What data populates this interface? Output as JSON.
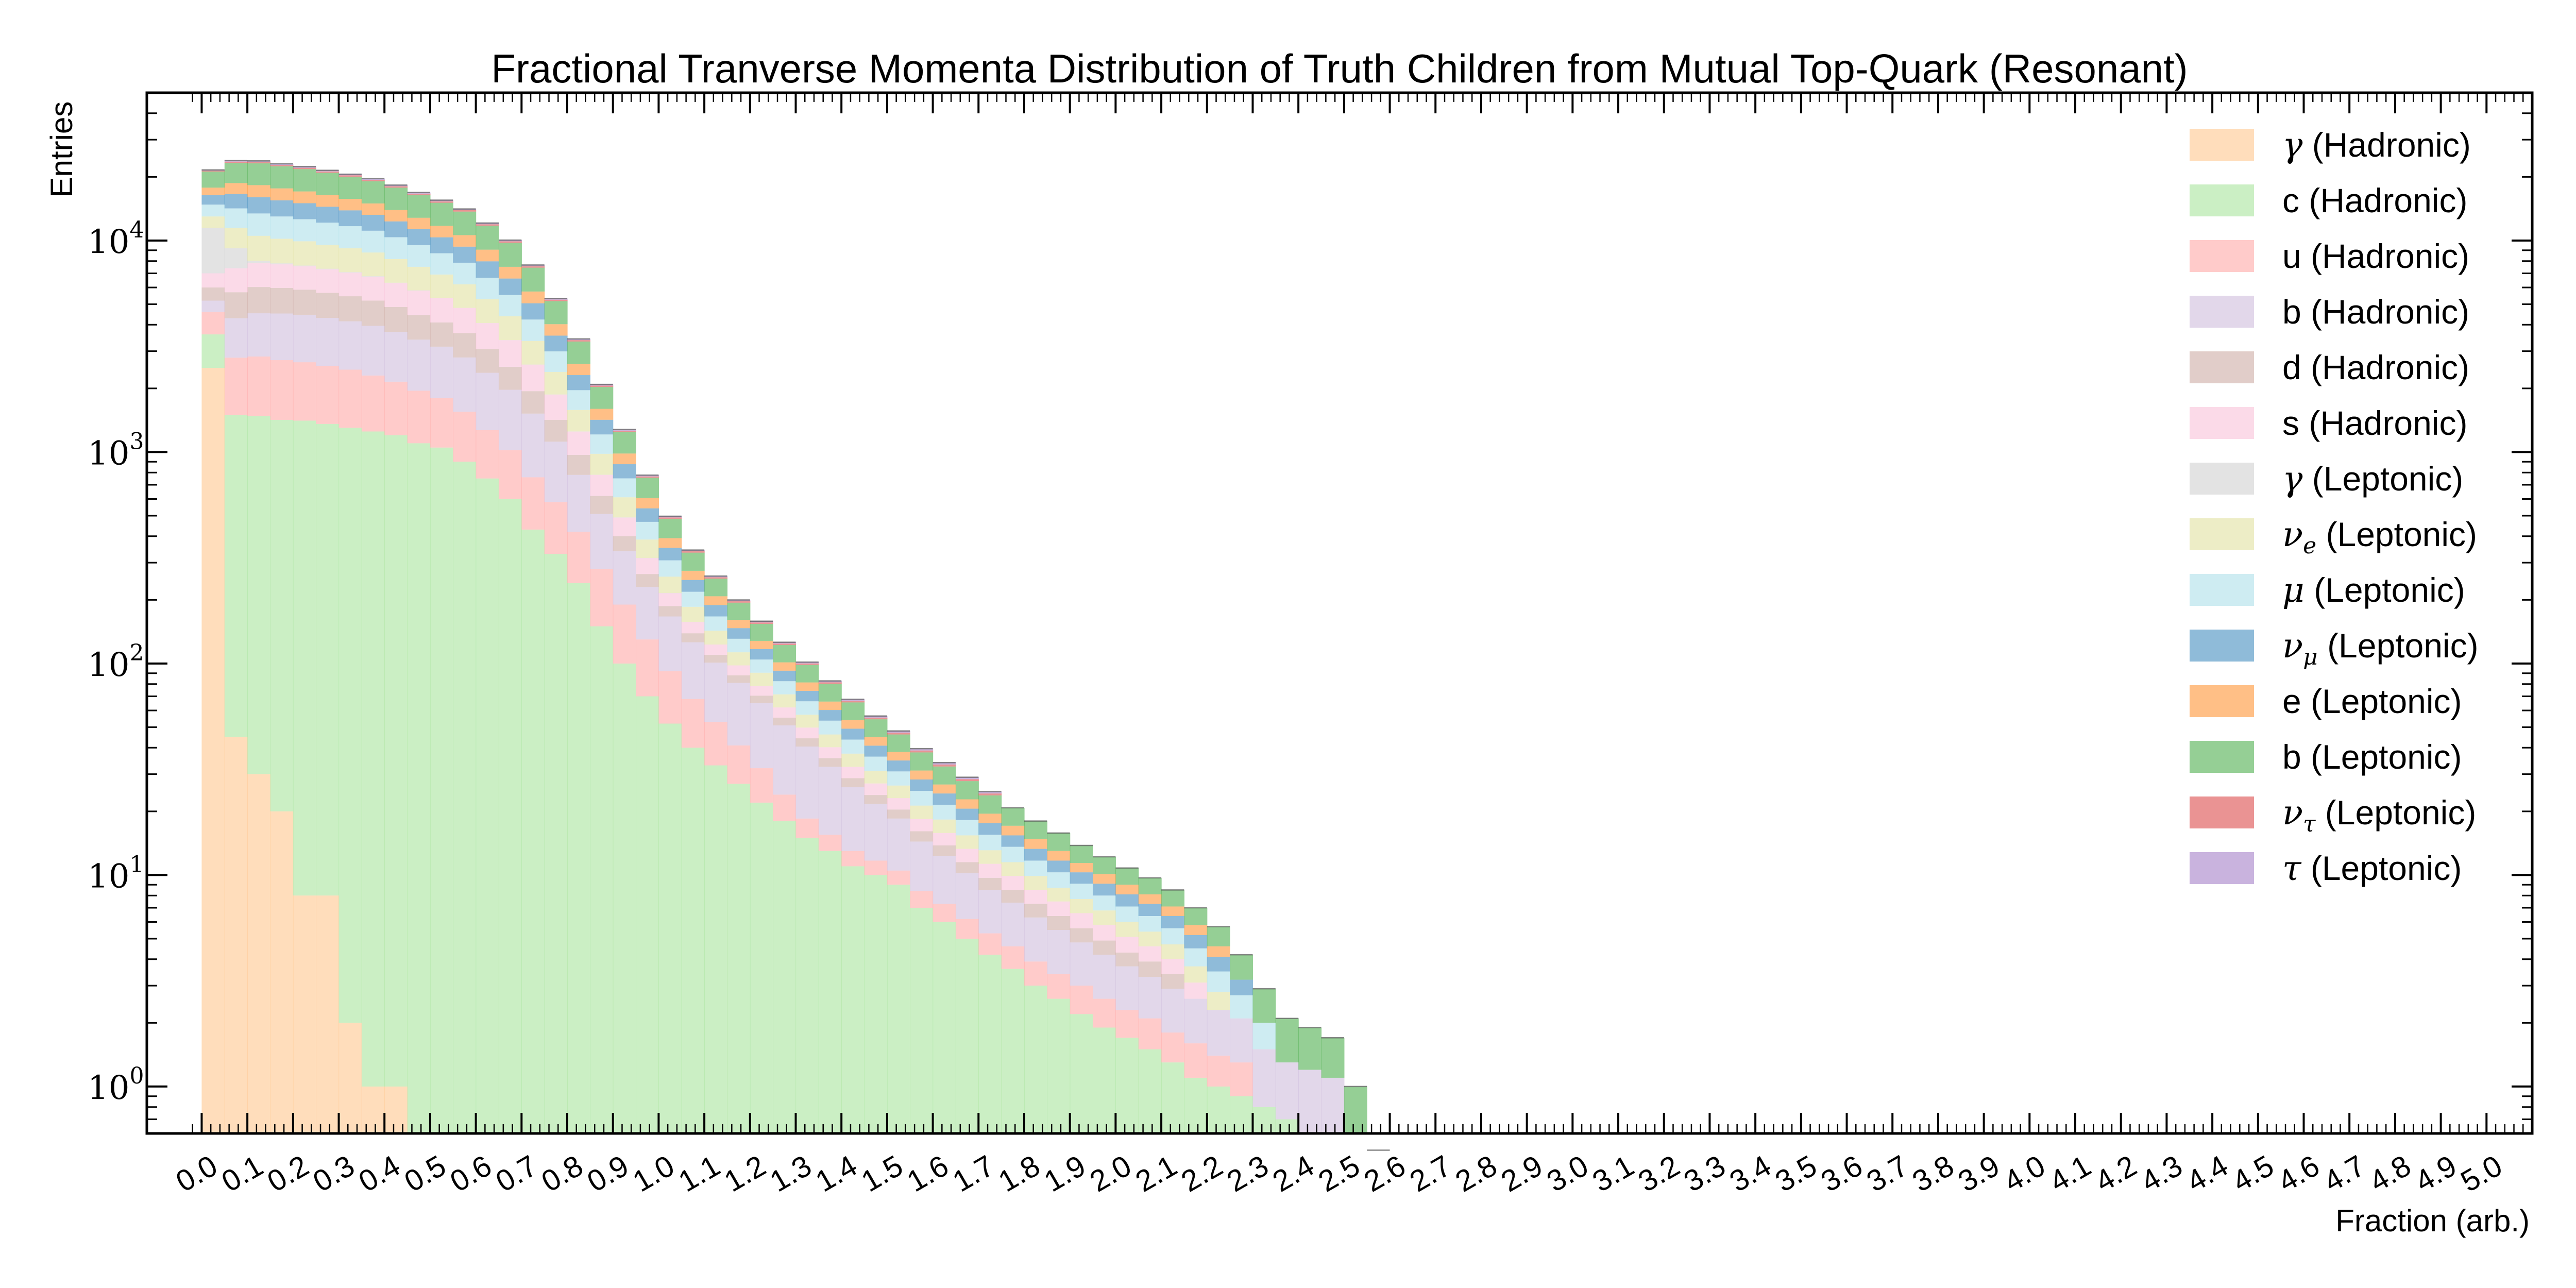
{
  "chart_data": {
    "type": "bar",
    "stacked": true,
    "title": "Fractional Tranverse Momenta Distribution of Truth Children from Mutual Top-Quark (Resonant)",
    "xlabel": "Fraction (arb.)",
    "ylabel": "Entries",
    "yscale": "log",
    "xlim": [
      -0.12,
      5.1
    ],
    "ylim": [
      0.6,
      50000
    ],
    "bins": {
      "start": 0.0,
      "width": 0.05,
      "count": 100
    },
    "legend": {
      "position": "top-right"
    },
    "xtick_labels": [
      "0.0",
      "0.1",
      "0.2",
      "0.3",
      "0.4",
      "0.5",
      "0.6",
      "0.7",
      "0.8",
      "0.9",
      "1.0",
      "1.1",
      "1.2",
      "1.3",
      "1.4",
      "1.5",
      "1.6",
      "1.7",
      "1.8",
      "1.9",
      "2.0",
      "2.1",
      "2.2",
      "2.3",
      "2.4",
      "2.5",
      "2.6",
      "2.7",
      "2.8",
      "2.9",
      "3.0",
      "3.1",
      "3.2",
      "3.3",
      "3.4",
      "3.5",
      "3.6",
      "3.7",
      "3.8",
      "3.9",
      "4.0",
      "4.1",
      "4.2",
      "4.3",
      "4.4",
      "4.5",
      "4.6",
      "4.7",
      "4.8",
      "4.9",
      "5.0"
    ],
    "ytick_labels": [
      {
        "value": 1,
        "base": "10",
        "exp": "0"
      },
      {
        "value": 10,
        "base": "10",
        "exp": "1"
      },
      {
        "value": 100,
        "base": "10",
        "exp": "2"
      },
      {
        "value": 1000,
        "base": "10",
        "exp": "3"
      },
      {
        "value": 10000,
        "base": "10",
        "exp": "4"
      }
    ],
    "series": [
      {
        "name": "γ (Hadronic)",
        "color": "#ffbb78",
        "values": [
          2500,
          45,
          30,
          20,
          8,
          8,
          2,
          1,
          1,
          0.5,
          0,
          0.5,
          0,
          0
        ]
      },
      {
        "name": "c (Hadronic)",
        "color": "#98df8a",
        "values": [
          1100,
          1450,
          1450,
          1400,
          1400,
          1350,
          1300,
          1250,
          1200,
          1100,
          1050,
          900,
          750,
          600,
          430,
          330,
          240,
          150,
          100,
          70,
          52,
          40,
          33,
          27,
          22,
          18,
          15,
          13,
          11,
          10,
          9,
          7,
          6,
          5,
          4.2,
          3.6,
          3,
          2.6,
          2.2,
          1.9,
          1.7,
          1.5,
          1.3,
          1.1,
          1,
          0.9,
          0.8,
          0.7,
          0.6,
          0.6,
          0.5,
          0.5
        ]
      },
      {
        "name": "u (Hadronic)",
        "color": "#ff9896",
        "values": [
          1000,
          1300,
          1350,
          1300,
          1250,
          1200,
          1150,
          1050,
          950,
          850,
          750,
          650,
          520,
          420,
          330,
          250,
          180,
          130,
          90,
          60,
          40,
          28,
          20,
          14,
          10,
          6,
          3.5,
          2.5,
          2,
          1.7,
          1.5,
          1.4,
          1.3,
          1.2,
          1.1,
          1,
          0.9,
          0.8,
          0.8,
          0.7,
          0.6,
          0.6,
          0.5,
          0.5,
          0.4,
          0.4
        ]
      },
      {
        "name": "b (Hadronic)",
        "color": "#c5b0d5",
        "values": [
          600,
          1500,
          1700,
          1800,
          1800,
          1750,
          1700,
          1650,
          1550,
          1450,
          1350,
          1250,
          1100,
          950,
          760,
          540,
          360,
          230,
          150,
          100,
          75,
          58,
          48,
          40,
          33,
          27,
          22,
          17,
          13,
          10,
          8,
          6,
          5,
          4,
          3.2,
          2.8,
          2.4,
          2.1,
          1.8,
          1.6,
          1.4,
          1.2,
          1.1,
          1,
          0.9,
          0.8,
          0.7,
          0.6,
          0.6,
          0.5
        ]
      },
      {
        "name": "d (Hadronic)",
        "color": "#c49c94",
        "values": [
          800,
          1400,
          1500,
          1450,
          1400,
          1350,
          1300,
          1250,
          1150,
          1050,
          950,
          850,
          700,
          560,
          420,
          300,
          190,
          110,
          60,
          35,
          20,
          13,
          9,
          7,
          5.5,
          4.5,
          3.8,
          3.2,
          2.7,
          2.2,
          1.9,
          1.7,
          1.5,
          1.3,
          1.2,
          1.1,
          1,
          0.9,
          0.8,
          0.7,
          0.6,
          0.6,
          0.5
        ]
      },
      {
        "name": "s (Hadronic)",
        "color": "#f7b6d2",
        "values": [
          1000,
          1700,
          1800,
          1750,
          1700,
          1650,
          1600,
          1550,
          1450,
          1350,
          1250,
          1150,
          1000,
          850,
          650,
          450,
          280,
          160,
          90,
          50,
          28,
          18,
          13,
          10,
          8,
          6.5,
          5.5,
          4.5,
          3.8,
          3.2,
          2.7,
          2.3,
          2,
          1.8,
          1.6,
          1.4,
          1.2,
          1.1,
          1,
          0.9,
          0.8,
          0.7,
          0.6,
          0.5
        ]
      },
      {
        "name": "γ (Leptonic)",
        "color": "#c7c7c7",
        "values": [
          4500,
          1800,
          200,
          80,
          60,
          50,
          40,
          30,
          20,
          15,
          10,
          7,
          5,
          4,
          3,
          2,
          1.5,
          1.2,
          1,
          0.8,
          0.6,
          0.5
        ]
      },
      {
        "name": "ν_e (Leptonic)",
        "color": "#dbdb8d",
        "values": [
          1500,
          2300,
          2500,
          2400,
          2300,
          2200,
          2100,
          2000,
          1850,
          1700,
          1550,
          1400,
          1200,
          1000,
          760,
          520,
          330,
          200,
          120,
          70,
          42,
          28,
          20,
          15,
          12,
          9.5,
          7.5,
          6,
          5,
          4,
          3.4,
          2.9,
          2.5,
          2.1,
          1.8,
          1.6,
          1.4,
          1.2,
          1.1,
          1,
          0.9,
          0.8,
          0.7,
          0.6,
          0.5
        ]
      },
      {
        "name": "μ (Leptonic)",
        "color": "#9edae5",
        "values": [
          1800,
          2700,
          2900,
          2800,
          2700,
          2600,
          2500,
          2350,
          2200,
          2000,
          1800,
          1650,
          1400,
          1150,
          880,
          600,
          380,
          230,
          140,
          82,
          50,
          33,
          24,
          18,
          14,
          11,
          9,
          7.5,
          6.2,
          5.2,
          4.4,
          3.7,
          3.2,
          2.8,
          2.4,
          2.1,
          1.8,
          1.6,
          1.4,
          1.2,
          1.1,
          1,
          0.9,
          0.8,
          0.7,
          0.6,
          0.5
        ]
      },
      {
        "name": "ν_μ (Leptonic)",
        "color": "#1f77b4",
        "values": [
          1600,
          2400,
          2600,
          2500,
          2400,
          2300,
          2200,
          2100,
          1950,
          1800,
          1650,
          1500,
          1300,
          1080,
          820,
          560,
          350,
          210,
          125,
          74,
          45,
          30,
          22,
          16,
          12.5,
          10,
          8,
          6.6,
          5.5,
          4.6,
          3.9,
          3.3,
          2.8,
          2.4,
          2.1,
          1.8,
          1.6,
          1.4,
          1.2,
          1.1,
          1,
          0.9,
          0.8,
          0.7,
          0.6,
          0.5
        ]
      },
      {
        "name": "e (Leptonic)",
        "color": "#ff7f0e",
        "values": [
          1400,
          2100,
          2250,
          2150,
          2050,
          1950,
          1850,
          1750,
          1620,
          1500,
          1380,
          1250,
          1080,
          900,
          690,
          470,
          300,
          180,
          108,
          64,
          39,
          26,
          19,
          14,
          11,
          8.8,
          7.1,
          5.8,
          4.8,
          4,
          3.4,
          2.9,
          2.5,
          2.2,
          1.9,
          1.7,
          1.5,
          1.3,
          1.1,
          1,
          0.9,
          0.8,
          0.7,
          0.6,
          0.5
        ]
      },
      {
        "name": "b (Leptonic)",
        "color": "#2ca02c",
        "values": [
          3400,
          4600,
          4900,
          4800,
          4700,
          4500,
          4300,
          4100,
          3850,
          3600,
          3350,
          3100,
          2700,
          2250,
          1700,
          1150,
          720,
          430,
          260,
          150,
          92,
          60,
          44,
          33,
          26,
          21,
          17,
          14,
          11.5,
          9.6,
          8,
          6.8,
          5.8,
          5,
          4.3,
          3.7,
          3.2,
          2.8,
          2.4,
          2.1,
          1.8,
          1.6,
          1.4,
          1.2,
          1.1,
          1,
          0.9,
          0.8,
          0.7,
          0.6,
          0.5
        ]
      },
      {
        "name": "ν_τ (Leptonic)",
        "color": "#d62728",
        "values": [
          200,
          320,
          340,
          330,
          320,
          310,
          300,
          290,
          270,
          250,
          230,
          210,
          180,
          150,
          115,
          80,
          50,
          30,
          18,
          11,
          7,
          5,
          3.8,
          3,
          2.4,
          2,
          1.7,
          1.4,
          1.2,
          1,
          0.9,
          0.8,
          0.7,
          0.6,
          0.5
        ]
      },
      {
        "name": "τ (Leptonic)",
        "color": "#9467bd",
        "values": [
          180,
          290,
          300,
          290,
          280,
          270,
          260,
          250,
          235,
          220,
          205,
          190,
          165,
          140,
          105,
          72,
          46,
          28,
          17,
          10.5,
          6.6,
          4.6,
          3.5,
          2.8,
          2.2,
          1.8,
          1.5,
          1.3,
          1.1,
          1,
          0.9,
          0.8,
          0.7,
          0.6,
          0.5
        ]
      }
    ]
  },
  "legend_labels": [
    {
      "sym": "γ",
      "sub": "",
      "suffix": " (Hadronic)"
    },
    {
      "sym": "",
      "sub": "",
      "suffix": "c (Hadronic)"
    },
    {
      "sym": "",
      "sub": "",
      "suffix": "u (Hadronic)"
    },
    {
      "sym": "",
      "sub": "",
      "suffix": "b (Hadronic)"
    },
    {
      "sym": "",
      "sub": "",
      "suffix": "d (Hadronic)"
    },
    {
      "sym": "",
      "sub": "",
      "suffix": "s (Hadronic)"
    },
    {
      "sym": "γ",
      "sub": "",
      "suffix": " (Leptonic)"
    },
    {
      "sym": "ν",
      "sub": "e",
      "suffix": " (Leptonic)"
    },
    {
      "sym": "μ",
      "sub": "",
      "suffix": " (Leptonic)"
    },
    {
      "sym": "ν",
      "sub": "μ",
      "suffix": " (Leptonic)"
    },
    {
      "sym": "",
      "sub": "",
      "suffix": "e (Leptonic)"
    },
    {
      "sym": "",
      "sub": "",
      "suffix": "b (Leptonic)"
    },
    {
      "sym": "ν",
      "sub": "τ",
      "suffix": " (Leptonic)"
    },
    {
      "sym": "τ",
      "sub": "",
      "suffix": " (Leptonic)"
    }
  ]
}
